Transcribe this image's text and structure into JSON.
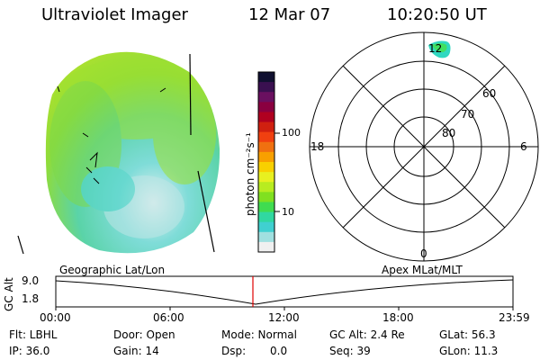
{
  "header": {
    "instrument": "Ultraviolet Imager",
    "date": "12 Mar 07",
    "time": "10:20:50 UT"
  },
  "colorbar": {
    "unit_label": "photon cm⁻²s⁻¹",
    "ticks": [
      "100",
      "10"
    ],
    "colors": [
      "#101030",
      "#3a1050",
      "#6a1060",
      "#8a0040",
      "#b00020",
      "#d02010",
      "#f04010",
      "#f07010",
      "#f8a000",
      "#f8d000",
      "#e8f020",
      "#b8ec20",
      "#80e020",
      "#40dc50",
      "#30d8a0",
      "#40d0d0",
      "#a0e0e0",
      "#f0f0f0"
    ]
  },
  "polar": {
    "mlt_labels": {
      "top": "12",
      "left": "18",
      "right": "6",
      "bottom": "0"
    },
    "lat_labels": [
      "60",
      "70",
      "80"
    ]
  },
  "timeline": {
    "left_title": "Geographic Lat/Lon",
    "right_title": "Apex MLat/MLT",
    "y_axis_label": "GC Alt",
    "y_ticks": [
      "9.0",
      "1.8"
    ],
    "x_ticks": [
      "00:00",
      "06:00",
      "12:00",
      "18:00",
      "23:59"
    ],
    "current_time_marker_color": "#e00000"
  },
  "status": {
    "filter": "Flt: LBHL",
    "ip": "IP: 36.0",
    "door": "Door: Open",
    "gain": "Gain: 14",
    "mode": "Mode: Normal",
    "dsp": "Dsp:",
    "dsp_value": "0.0",
    "gc_alt": "GC Alt: 2.4 Re",
    "seq": "Seq: 39",
    "glat": "GLat:  56.3",
    "glon": "GLon:  11.3"
  }
}
